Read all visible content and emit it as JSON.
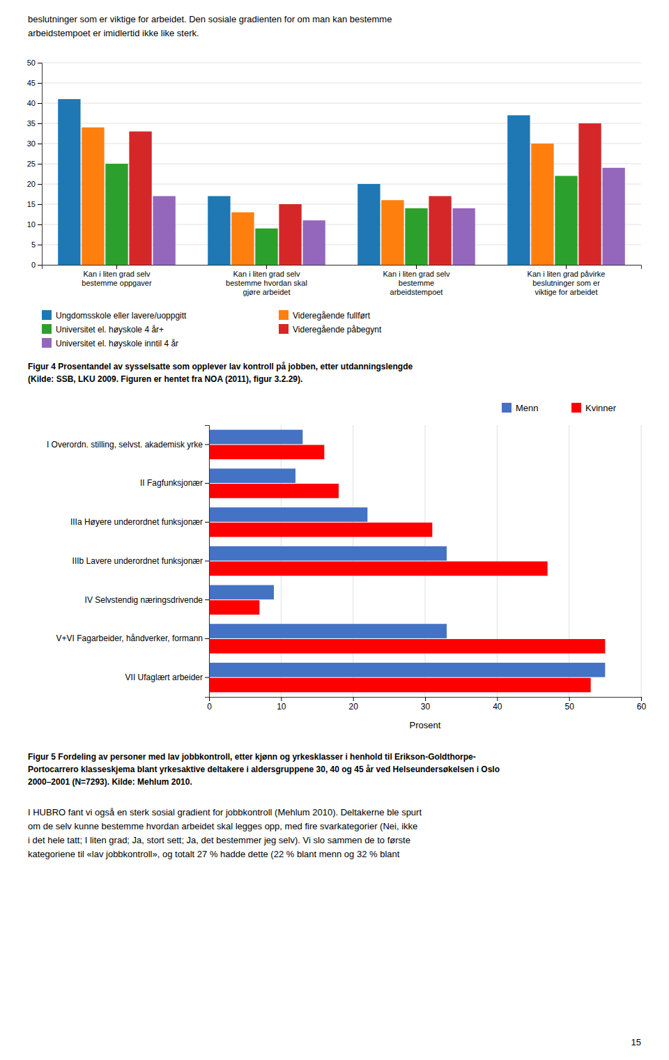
{
  "chart_data": [
    {
      "type": "bar",
      "categories": [
        "Kan i liten grad selv\nbestemme  oppgaver",
        "Kan i liten grad selv\nbestemme hvordan skal\ngjøre arbeidet",
        "Kan i liten grad selv\nbestemme\narbeidstempoet",
        "Kan i liten grad påvirke\nbeslutninger som er\nviktige for arbeidet"
      ],
      "series": [
        {
          "name": "Ungdomsskole eller lavere/uoppgitt",
          "values": [
            41,
            17,
            20,
            37
          ]
        },
        {
          "name": "Videregående fullført",
          "values": [
            34,
            13,
            16,
            30
          ]
        },
        {
          "name": "Universitet el. høyskole  4 år+",
          "values": [
            25,
            9,
            14,
            22
          ]
        },
        {
          "name": "Videregående påbegynt",
          "values": [
            33,
            15,
            17,
            35
          ]
        },
        {
          "name": "Universitet el. høyskole inntil 4 år",
          "values": [
            17,
            11,
            14,
            24
          ]
        }
      ],
      "ylim": [
        0,
        50
      ],
      "yticks": [
        0,
        5,
        10,
        15,
        20,
        25,
        30,
        35,
        40,
        45,
        50
      ],
      "grid": true,
      "legend": "lower left",
      "caption": [
        "Figur 4  Prosentandel av sysselsatte som opplever lav kontroll på jobben, etter utdanningslengde",
        "(Kilde: SSB, LKU 2009. Figuren er hentet fra NOA (2011), figur 3.2.29)."
      ]
    },
    {
      "type": "bar",
      "orientation": "horizontal",
      "categories": [
        "I Overordn. stilling, selvst. akademisk yrke",
        "II Fagfunksjonær",
        "IIIa  Høyere underordnet funksjonær",
        "IIIb Lavere underordnet funksjonær",
        "IV Selvstendig næringsdrivende",
        "V+VI Fagarbeider, håndverker, formann",
        "VII Ufaglært arbeider"
      ],
      "series": [
        {
          "name": "Menn",
          "color": "#4472C4",
          "values": [
            13,
            12,
            22,
            33,
            9,
            33,
            55
          ]
        },
        {
          "name": "Kvinner",
          "color": "#FF0000",
          "values": [
            16,
            18,
            31,
            47,
            7,
            55,
            53
          ]
        }
      ],
      "xlim": [
        0,
        60
      ],
      "xticks": [
        0,
        10,
        20,
        30,
        40,
        50,
        60
      ],
      "xlabel": "Prosent",
      "grid": true,
      "legend": "upper right",
      "caption": [
        "Figur 5  Fordeling av personer med lav jobbkontroll, etter kjønn og yrkesklasser i henhold til Erikson-Goldthorpe-",
        "Portocarrero klasseskjema blant yrkesaktive deltakere i aldersgruppene 30, 40 og 45 år ved Helseundersøkelsen i Oslo",
        "2000–2001 (N=7293). Kilde: Mehlum 2010."
      ]
    }
  ],
  "text_top": [
    "beslutninger som er viktige for arbeidet. Den sosiale gradienten for om man kan bestemme",
    "arbeidstempoet er imidlertid ikke like sterk."
  ],
  "text_bottom": [
    "I HUBRO fant vi også en sterk sosial gradient for jobbkontroll (Mehlum 2010). Deltakerne ble spurt",
    "om de selv kunne bestemme hvordan arbeidet skal legges opp, med fire svarkategorier (Nei, ikke",
    "i det hele tatt; I liten grad; Ja, stort sett; Ja, det bestemmer jeg selv). Vi slo sammen de to første",
    "kategoriene til «lav jobbkontroll», og totalt 27 % hadde dette (22 % blant menn og 32 % blant"
  ],
  "page_number": "15"
}
